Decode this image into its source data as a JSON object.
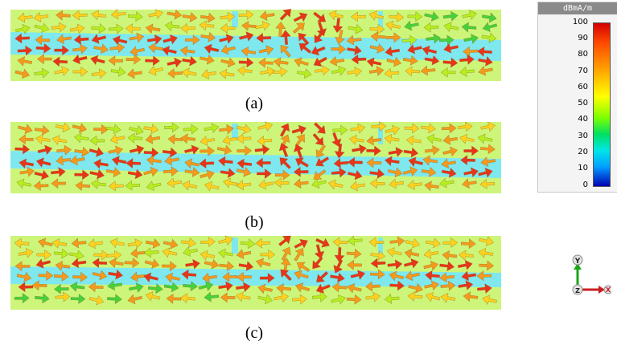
{
  "panels": [
    {
      "label": "(a)"
    },
    {
      "label": "(b)"
    },
    {
      "label": "(c)"
    }
  ],
  "legend": {
    "unit": "dBmA/m",
    "ticks": [
      "100",
      "90",
      "80",
      "70",
      "60",
      "50",
      "40",
      "30",
      "20",
      "10",
      "0"
    ],
    "gradient_colors": [
      "#d40000",
      "#ff4a00",
      "#ffa000",
      "#ffff00",
      "#7dff00",
      "#00e060",
      "#00e6e6",
      "#00a0ff",
      "#0000b4"
    ]
  },
  "axes": {
    "y_label": "Y",
    "z_label": "Z",
    "x_label": "X",
    "colors": {
      "y": "#1aa51a",
      "x": "#c81e1e",
      "z": "#3c3c3c"
    }
  },
  "colors": {
    "substrate": "#cdf57a",
    "channel": "#7ee8ee",
    "arrow_hot": "#e8351a",
    "arrow_warm": "#f59a1c",
    "arrow_mid": "#ffd21e",
    "arrow_cool": "#b6ef1e",
    "arrow_green": "#46d23a"
  }
}
